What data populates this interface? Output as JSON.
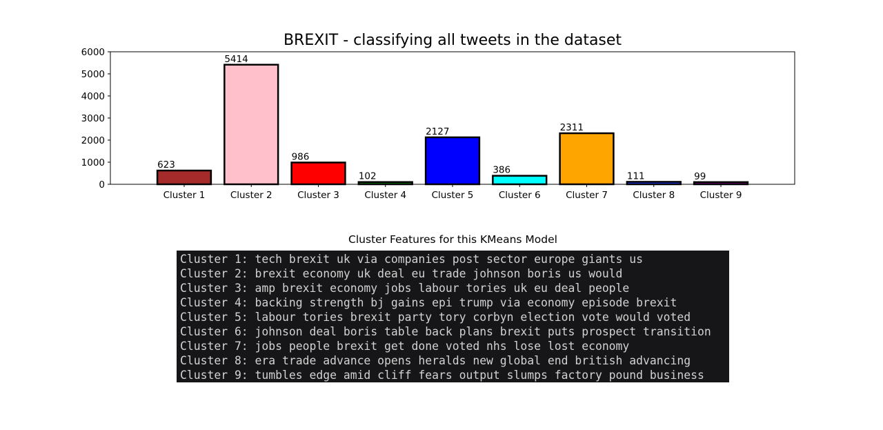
{
  "chart_data": {
    "type": "bar",
    "title": "BREXIT - classifying all tweets in the dataset",
    "xlabel": "",
    "ylabel": "",
    "categories": [
      "Cluster 1",
      "Cluster 2",
      "Cluster 3",
      "Cluster 4",
      "Cluster 5",
      "Cluster 6",
      "Cluster 7",
      "Cluster 8",
      "Cluster 9"
    ],
    "values": [
      623,
      5414,
      986,
      102,
      2127,
      386,
      2311,
      111,
      99
    ],
    "colors": [
      "#a52a2a",
      "#ffc0cb",
      "#ff0000",
      "#008000",
      "#0000ff",
      "#00ffff",
      "#ffa500",
      "#1e3cff",
      "#800080"
    ],
    "edge_color": "#000000",
    "ylim": [
      0,
      6000
    ],
    "yticks": [
      0,
      1000,
      2000,
      3000,
      4000,
      5000,
      6000
    ],
    "grid": false,
    "data_labels": true
  },
  "features": {
    "title": "Cluster Features for this KMeans Model",
    "lines": [
      "Cluster 1: tech brexit uk via companies post sector europe giants us",
      "Cluster 2: brexit economy uk deal eu trade johnson boris us would",
      "Cluster 3: amp brexit economy jobs labour tories uk eu deal people",
      "Cluster 4: backing strength bj gains epi trump via economy episode brexit",
      "Cluster 5: labour tories brexit party tory corbyn election vote would voted",
      "Cluster 6: johnson deal boris table back plans brexit puts prospect transition",
      "Cluster 7: jobs people brexit get done voted nhs lose lost economy",
      "Cluster 8: era trade advance opens heralds new global end british advancing",
      "Cluster 9: tumbles edge amid cliff fears output slumps factory pound business"
    ]
  }
}
